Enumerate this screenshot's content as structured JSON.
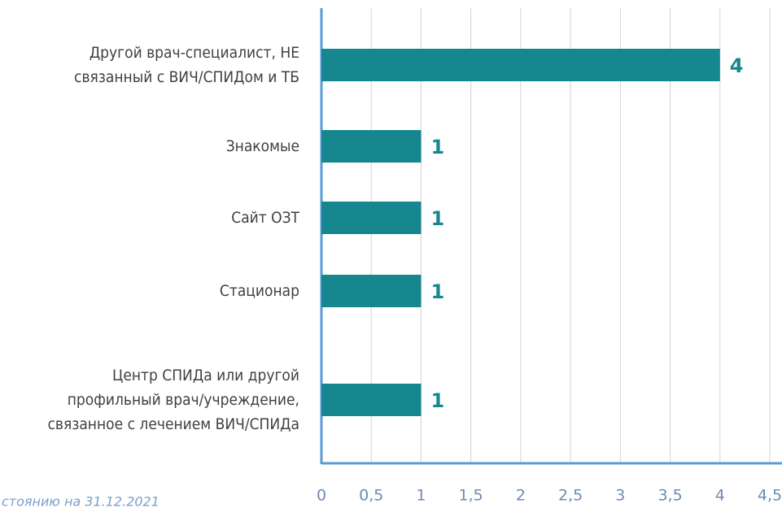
{
  "chart_data": {
    "type": "bar",
    "orientation": "horizontal",
    "categories": [
      "Другой врач-специалист, НЕ\nсвязанный с ВИЧ/СПИДом и ТБ",
      "Знакомые",
      "Сайт ОЗТ",
      "Стационар",
      "Центр СПИДа или другой\nпрофильный врач/учреждение,\nсвязанное с лечением ВИЧ/СПИДа"
    ],
    "values": [
      4,
      1,
      1,
      1,
      1
    ],
    "color": "#16878f",
    "xlim": [
      0,
      4.5
    ],
    "xticks": [
      0,
      {
        "value": 0.5,
        "label": "0,5"
      },
      1,
      {
        "value": 1.5,
        "label": "1,5"
      },
      2,
      {
        "value": 2.5,
        "label": "2,5"
      },
      3,
      {
        "value": 3.5,
        "label": "3,5"
      },
      4,
      {
        "value": 4.5,
        "label": "4,5"
      }
    ],
    "grid": true,
    "footnote": "стоянию на 31.12.2021"
  }
}
